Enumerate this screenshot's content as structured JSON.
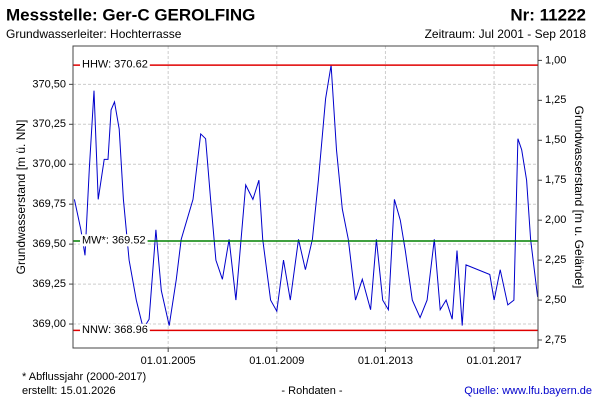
{
  "header": {
    "title": "Messstelle: Ger-C GEROLFING",
    "number": "Nr: 11222",
    "aquifer": "Grundwasserleiter:  Hochterrasse",
    "period": "Zeitraum: Jul 2001 - Sep 2018"
  },
  "chart_data": {
    "type": "line",
    "y_label": "Grundwasserstand [m ü. NN]",
    "y2_label": "Grundwasserstand [m u. Gelände]",
    "x": [
      "2001-07-20",
      "2001-10-15",
      "2001-12-10",
      "2002-02-05",
      "2002-04-10",
      "2002-06-05",
      "2002-08-25",
      "2002-10-15",
      "2002-11-25",
      "2003-01-10",
      "2003-03-15",
      "2003-05-10",
      "2003-07-25",
      "2003-10-30",
      "2004-02-01",
      "2004-04-20",
      "2004-07-20",
      "2004-10-01",
      "2005-01-15",
      "2005-04-20",
      "2005-06-25",
      "2005-12-01",
      "2006-03-15",
      "2006-05-20",
      "2006-07-25",
      "2006-10-05",
      "2007-01-01",
      "2007-04-01",
      "2007-07-01",
      "2007-11-10",
      "2008-02-15",
      "2008-05-05",
      "2008-06-25",
      "2008-10-10",
      "2009-01-01",
      "2009-04-01",
      "2009-07-01",
      "2009-10-20",
      "2010-01-20",
      "2010-04-25",
      "2010-07-15",
      "2010-10-20",
      "2011-01-01",
      "2011-03-15",
      "2011-06-01",
      "2011-08-20",
      "2011-11-25",
      "2012-02-25",
      "2012-06-15",
      "2012-09-01",
      "2012-11-25",
      "2013-02-10",
      "2013-05-01",
      "2013-07-20",
      "2013-09-25",
      "2013-12-28",
      "2014-04-12",
      "2014-07-15",
      "2014-10-20",
      "2015-01-08",
      "2015-03-28",
      "2015-06-18",
      "2015-08-22",
      "2015-10-30",
      "2015-12-20",
      "2016-11-05",
      "2017-01-01",
      "2017-03-25",
      "2017-07-05",
      "2017-09-25",
      "2017-11-18",
      "2018-01-08",
      "2018-03-15",
      "2018-05-08",
      "2018-08-10"
    ],
    "series": [
      {
        "color": "#0000cc",
        "values": [
          369.78,
          369.59,
          369.43,
          369.97,
          370.46,
          369.78,
          370.03,
          370.03,
          370.34,
          370.39,
          370.22,
          369.78,
          369.4,
          369.15,
          368.97,
          369.03,
          369.59,
          369.21,
          368.99,
          369.28,
          369.53,
          369.78,
          370.19,
          370.16,
          369.78,
          369.4,
          369.28,
          369.53,
          369.15,
          369.87,
          369.78,
          369.9,
          369.53,
          369.15,
          369.08,
          369.4,
          369.15,
          369.53,
          369.34,
          369.53,
          369.9,
          370.41,
          370.62,
          370.09,
          369.72,
          369.53,
          369.15,
          369.28,
          369.09,
          369.53,
          369.15,
          369.09,
          369.78,
          369.65,
          369.46,
          369.15,
          369.04,
          369.15,
          369.53,
          369.09,
          369.15,
          369.03,
          369.46,
          368.99,
          369.37,
          369.31,
          369.15,
          369.34,
          369.12,
          369.15,
          370.16,
          370.09,
          369.9,
          369.53,
          369.17
        ]
      }
    ],
    "reference_lines": [
      {
        "label": "HHW: 370.62",
        "value": 370.62,
        "color": "#e00000"
      },
      {
        "label": "MW*: 369.52",
        "value": 369.52,
        "color": "#008000"
      },
      {
        "label": "NNW: 368.96",
        "value": 368.96,
        "color": "#e00000"
      }
    ],
    "xlim": [
      "2001-07-01",
      "2018-08-15"
    ],
    "xticks": [
      {
        "value": "2005-01-01",
        "label": "01.01.2005"
      },
      {
        "value": "2009-01-01",
        "label": "01.01.2009"
      },
      {
        "value": "2013-01-01",
        "label": "01.01.2013"
      },
      {
        "value": "2017-01-01",
        "label": "01.01.2017"
      }
    ],
    "ylim": [
      368.85,
      370.74
    ],
    "yticks": [
      {
        "value": 369,
        "label": "369,00"
      },
      {
        "value": 369.25,
        "label": "369,25"
      },
      {
        "value": 369.5,
        "label": "369,50"
      },
      {
        "value": 369.75,
        "label": "369,75"
      },
      {
        "value": 370,
        "label": "370,00"
      },
      {
        "value": 370.25,
        "label": "370,25"
      },
      {
        "value": 370.5,
        "label": "370,50"
      }
    ],
    "y2lim": [
      2.8,
      0.91
    ],
    "y2ticks": [
      {
        "value": 1,
        "label": "1,00"
      },
      {
        "value": 1.25,
        "label": "1,25"
      },
      {
        "value": 1.5,
        "label": "1,50"
      },
      {
        "value": 1.75,
        "label": "1,75"
      },
      {
        "value": 2,
        "label": "2,00"
      },
      {
        "value": 2.25,
        "label": "2,25"
      },
      {
        "value": 2.5,
        "label": "2,50"
      },
      {
        "value": 2.75,
        "label": "2,75"
      }
    ],
    "grid": true
  },
  "footer": {
    "note": "* Abflussjahr (2000-2017)",
    "created": "erstellt:  15.01.2026",
    "kind": "- Rohdaten -",
    "source": "Quelle: www.lfu.bayern.de"
  }
}
